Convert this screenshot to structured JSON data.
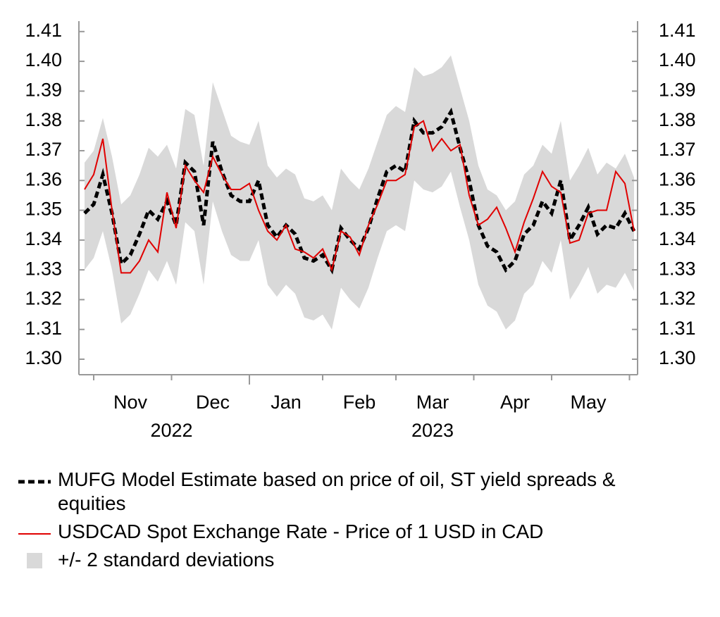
{
  "chart_data": {
    "type": "line",
    "categories": [
      null,
      null,
      null,
      null,
      null,
      "Nov",
      null,
      null,
      null,
      null,
      null,
      null,
      null,
      null,
      "Dec",
      null,
      null,
      null,
      null,
      null,
      null,
      null,
      "Jan",
      null,
      null,
      null,
      null,
      null,
      null,
      null,
      "Feb",
      null,
      null,
      null,
      null,
      null,
      null,
      null,
      "Mar",
      null,
      null,
      null,
      null,
      null,
      null,
      null,
      null,
      "Apr",
      null,
      null,
      null,
      null,
      null,
      null,
      null,
      "May",
      null,
      null,
      null,
      null,
      null
    ],
    "x_group_labels": [
      "2022",
      "2023"
    ],
    "ylim": [
      1.2948,
      1.4135
    ],
    "yticks": [
      {
        "value": 1.3,
        "label": "1.30"
      },
      1.31,
      1.32,
      1.33,
      1.34,
      1.35,
      1.36,
      1.37,
      1.38,
      1.39,
      {
        "value": 1.4,
        "label": "1.40"
      },
      1.41
    ],
    "y2lim": [
      1.2948,
      1.4135
    ],
    "y2ticks": [
      {
        "value": 1.3,
        "label": "1.30"
      },
      1.31,
      1.32,
      1.33,
      1.34,
      1.35,
      1.36,
      1.37,
      1.38,
      1.39,
      {
        "value": 1.4,
        "label": "1.40"
      },
      1.41
    ],
    "series": [
      {
        "name": "+/- 2 standard deviations",
        "color": "#d9d9d9",
        "kind": "band",
        "upper": [
          1.366,
          1.37,
          1.381,
          1.368,
          1.352,
          1.355,
          1.362,
          1.371,
          1.368,
          1.372,
          1.364,
          1.384,
          1.382,
          1.365,
          1.393,
          1.384,
          1.375,
          1.373,
          1.372,
          1.38,
          1.365,
          1.361,
          1.364,
          1.362,
          1.354,
          1.353,
          1.355,
          1.35,
          1.364,
          1.36,
          1.357,
          1.364,
          1.373,
          1.382,
          1.385,
          1.383,
          1.398,
          1.395,
          1.396,
          1.398,
          1.402,
          1.391,
          1.38,
          1.365,
          1.357,
          1.355,
          1.35,
          1.353,
          1.362,
          1.365,
          1.372,
          1.369,
          1.38,
          1.36,
          1.365,
          1.371,
          1.362,
          1.366,
          1.364,
          1.369,
          1.361
        ],
        "lower": [
          1.33,
          1.334,
          1.343,
          1.33,
          1.312,
          1.315,
          1.322,
          1.33,
          1.326,
          1.333,
          1.325,
          1.346,
          1.343,
          1.325,
          1.353,
          1.343,
          1.335,
          1.333,
          1.333,
          1.34,
          1.325,
          1.321,
          1.325,
          1.322,
          1.314,
          1.313,
          1.315,
          1.31,
          1.324,
          1.32,
          1.317,
          1.324,
          1.334,
          1.343,
          1.345,
          1.343,
          1.36,
          1.357,
          1.356,
          1.358,
          1.363,
          1.351,
          1.34,
          1.325,
          1.318,
          1.316,
          1.31,
          1.313,
          1.322,
          1.325,
          1.333,
          1.329,
          1.34,
          1.32,
          1.325,
          1.331,
          1.322,
          1.325,
          1.324,
          1.329,
          1.323
        ]
      },
      {
        "name": "MUFG Model Estimate based on price of oil, ST yield spreads & equities",
        "color": "#000000",
        "dashed": true,
        "values": [
          1.349,
          1.352,
          1.362,
          1.349,
          1.332,
          1.335,
          1.342,
          1.35,
          1.347,
          1.353,
          1.345,
          1.366,
          1.363,
          1.345,
          1.373,
          1.363,
          1.355,
          1.353,
          1.353,
          1.36,
          1.345,
          1.341,
          1.345,
          1.342,
          1.334,
          1.333,
          1.335,
          1.33,
          1.344,
          1.34,
          1.337,
          1.344,
          1.354,
          1.363,
          1.365,
          1.363,
          1.38,
          1.376,
          1.376,
          1.378,
          1.383,
          1.371,
          1.36,
          1.345,
          1.338,
          1.336,
          1.33,
          1.333,
          1.342,
          1.345,
          1.353,
          1.349,
          1.36,
          1.34,
          1.345,
          1.351,
          1.342,
          1.345,
          1.344,
          1.349,
          1.343
        ]
      },
      {
        "name": "USDCAD Spot Exchange Rate - Price of 1 USD in CAD",
        "color": "#e00000",
        "dashed": false,
        "values": [
          1.357,
          1.362,
          1.374,
          1.35,
          1.329,
          1.329,
          1.333,
          1.34,
          1.336,
          1.356,
          1.344,
          1.365,
          1.36,
          1.356,
          1.368,
          1.362,
          1.357,
          1.357,
          1.359,
          1.35,
          1.343,
          1.34,
          1.345,
          1.337,
          1.336,
          1.334,
          1.337,
          1.33,
          1.343,
          1.341,
          1.335,
          1.345,
          1.352,
          1.36,
          1.36,
          1.362,
          1.378,
          1.38,
          1.37,
          1.374,
          1.37,
          1.372,
          1.355,
          1.345,
          1.347,
          1.351,
          1.344,
          1.336,
          1.346,
          1.354,
          1.363,
          1.358,
          1.356,
          1.339,
          1.34,
          1.349,
          1.35,
          1.35,
          1.363,
          1.359,
          1.343
        ]
      }
    ]
  }
}
